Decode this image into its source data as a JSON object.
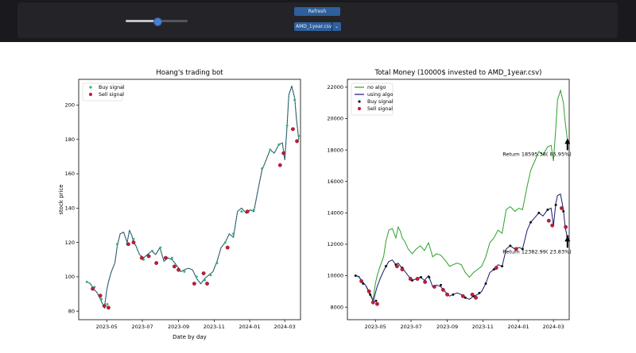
{
  "toolbar": {
    "slider_value": 0.5,
    "refresh_label": "Refresh",
    "file_select_value": "AMD_1year.csv",
    "dropdown_icon": "chevron-down-icon"
  },
  "chart_data": [
    {
      "type": "line",
      "title": "Hoang's trading bot",
      "xlabel": "Date by day",
      "ylabel": "stock price",
      "xlim": [
        "2023-03-14",
        "2024-03-28"
      ],
      "ylim": [
        75,
        215
      ],
      "x_ticks": [
        "2023-05",
        "2023-07",
        "2023-09",
        "2023-11",
        "2024-01",
        "2024-03"
      ],
      "y_ticks": [
        80,
        100,
        120,
        140,
        160,
        180,
        200
      ],
      "legend": {
        "position": "upper left",
        "entries": [
          "Buy signal",
          "Sell signal"
        ]
      },
      "colors": {
        "price": "#4a8aa0",
        "buy": "#3cb371",
        "sell": "#c21e3a"
      },
      "grid": false,
      "series": [
        {
          "dates": [
            "2023-03-28",
            "2023-04-03",
            "2023-04-08",
            "2023-04-14",
            "2023-04-20",
            "2023-04-24",
            "2023-04-27",
            "2023-05-01",
            "2023-05-04",
            "2023-05-09",
            "2023-05-15",
            "2023-05-19",
            "2023-05-24",
            "2023-05-30",
            "2023-06-05",
            "2023-06-09",
            "2023-06-13",
            "2023-06-16",
            "2023-06-20",
            "2023-06-26",
            "2023-07-03",
            "2023-07-10",
            "2023-07-17",
            "2023-07-24",
            "2023-07-31",
            "2023-08-07",
            "2023-08-14",
            "2023-08-21",
            "2023-08-28",
            "2023-09-05",
            "2023-09-11",
            "2023-09-18",
            "2023-09-25",
            "2023-10-02",
            "2023-10-09",
            "2023-10-16",
            "2023-10-23",
            "2023-10-30",
            "2023-11-06",
            "2023-11-13",
            "2023-11-20",
            "2023-11-27",
            "2023-12-04",
            "2023-12-11",
            "2023-12-18",
            "2023-12-26",
            "2024-01-02",
            "2024-01-08",
            "2024-01-16",
            "2024-01-22",
            "2024-01-29",
            "2024-02-05",
            "2024-02-12",
            "2024-02-20",
            "2024-02-26",
            "2024-03-01",
            "2024-03-05",
            "2024-03-08",
            "2024-03-13",
            "2024-03-18",
            "2024-03-21",
            "2024-03-25"
          ],
          "price": [
            97,
            96,
            93,
            91,
            87,
            84,
            82,
            92,
            97,
            103,
            108,
            118,
            125,
            126,
            120,
            127,
            124,
            120,
            118,
            113,
            111,
            113,
            115,
            113,
            117,
            109,
            111,
            110,
            107,
            103,
            104,
            105,
            104,
            99,
            96,
            99,
            101,
            103,
            109,
            117,
            120,
            125,
            123,
            138,
            140,
            137,
            139,
            138,
            152,
            162,
            168,
            174,
            172,
            177,
            178,
            168,
            188,
            206,
            211,
            204,
            192,
            180
          ]
        }
      ],
      "buy_points": [
        [
          "2023-03-28",
          97
        ],
        [
          "2023-04-10",
          94
        ],
        [
          "2023-04-22",
          87
        ],
        [
          "2023-05-02",
          84
        ],
        [
          "2023-05-19",
          119
        ],
        [
          "2023-06-05",
          119
        ],
        [
          "2023-06-16",
          122
        ],
        [
          "2023-07-03",
          110
        ],
        [
          "2023-07-18",
          115
        ],
        [
          "2023-08-01",
          117
        ],
        [
          "2023-08-21",
          111
        ],
        [
          "2023-09-11",
          103
        ],
        [
          "2023-10-02",
          100
        ],
        [
          "2023-10-16",
          98
        ],
        [
          "2023-10-26",
          101
        ],
        [
          "2023-11-06",
          108
        ],
        [
          "2023-11-20",
          120
        ],
        [
          "2023-12-04",
          125
        ],
        [
          "2023-12-18",
          138
        ],
        [
          "2024-01-08",
          139
        ],
        [
          "2024-01-22",
          163
        ],
        [
          "2024-02-05",
          174
        ],
        [
          "2024-02-20",
          177
        ],
        [
          "2024-03-05",
          188
        ],
        [
          "2024-03-18",
          203
        ],
        [
          "2024-03-25",
          182
        ]
      ],
      "sell_points": [
        [
          "2023-04-07",
          93
        ],
        [
          "2023-04-20",
          89
        ],
        [
          "2023-04-27",
          83
        ],
        [
          "2023-05-04",
          82
        ],
        [
          "2023-06-07",
          119
        ],
        [
          "2023-06-16",
          120
        ],
        [
          "2023-06-30",
          111
        ],
        [
          "2023-07-12",
          112
        ],
        [
          "2023-07-25",
          108
        ],
        [
          "2023-08-10",
          111
        ],
        [
          "2023-08-25",
          106
        ],
        [
          "2023-09-01",
          104
        ],
        [
          "2023-09-28",
          96
        ],
        [
          "2023-10-14",
          102
        ],
        [
          "2023-10-20",
          96
        ],
        [
          "2023-11-24",
          117
        ],
        [
          "2023-12-28",
          138
        ],
        [
          "2024-02-22",
          165
        ],
        [
          "2024-02-28",
          172
        ],
        [
          "2024-03-15",
          186
        ],
        [
          "2024-03-22",
          179
        ]
      ]
    },
    {
      "type": "line",
      "title": "Total Money (10000$ invested to AMD_1year.csv)",
      "xlim": [
        "2023-03-14",
        "2024-03-28"
      ],
      "ylim": [
        7200,
        22500
      ],
      "x_ticks": [
        "2023-05",
        "2023-07",
        "2023-09",
        "2023-11",
        "2024-01",
        "2024-03"
      ],
      "y_ticks": [
        8000,
        10000,
        12000,
        14000,
        16000,
        18000,
        20000,
        22000
      ],
      "legend": {
        "position": "upper left",
        "entries": [
          "no algo",
          "using algo",
          "Buy signal",
          "Sell signal"
        ]
      },
      "colors": {
        "no_algo": "#2ca02c",
        "using_algo": "#1a1a6e",
        "buy": "#111111",
        "sell": "#c21e3a"
      },
      "grid": false,
      "series": [
        {
          "name": "no algo",
          "dates": [
            "2023-03-28",
            "2023-04-03",
            "2023-04-08",
            "2023-04-14",
            "2023-04-20",
            "2023-04-24",
            "2023-04-27",
            "2023-05-01",
            "2023-05-04",
            "2023-05-09",
            "2023-05-15",
            "2023-05-19",
            "2023-05-24",
            "2023-05-30",
            "2023-06-05",
            "2023-06-09",
            "2023-06-13",
            "2023-06-16",
            "2023-06-20",
            "2023-06-26",
            "2023-07-03",
            "2023-07-10",
            "2023-07-17",
            "2023-07-24",
            "2023-07-31",
            "2023-08-07",
            "2023-08-14",
            "2023-08-21",
            "2023-08-28",
            "2023-09-05",
            "2023-09-11",
            "2023-09-18",
            "2023-09-25",
            "2023-10-02",
            "2023-10-09",
            "2023-10-16",
            "2023-10-23",
            "2023-10-30",
            "2023-11-06",
            "2023-11-13",
            "2023-11-20",
            "2023-11-27",
            "2023-12-04",
            "2023-12-11",
            "2023-12-18",
            "2023-12-26",
            "2024-01-02",
            "2024-01-08",
            "2024-01-16",
            "2024-01-22",
            "2024-01-29",
            "2024-02-05",
            "2024-02-12",
            "2024-02-20",
            "2024-02-26",
            "2024-03-01",
            "2024-03-05",
            "2024-03-08",
            "2024-03-13",
            "2024-03-18",
            "2024-03-21",
            "2024-03-25"
          ],
          "values": [
            10000,
            9900,
            9600,
            9400,
            8900,
            8600,
            8500,
            9500,
            10000,
            10600,
            11200,
            12200,
            12900,
            13000,
            12400,
            13100,
            12800,
            12400,
            12200,
            11700,
            11400,
            11700,
            11900,
            11600,
            12100,
            11200,
            11400,
            11300,
            11000,
            10600,
            10700,
            10800,
            10700,
            10200,
            9900,
            10200,
            10400,
            10600,
            11200,
            12100,
            12400,
            12900,
            12700,
            14200,
            14400,
            14100,
            14300,
            14200,
            15700,
            16700,
            17300,
            17900,
            17700,
            18200,
            18300,
            17300,
            19400,
            21200,
            21800,
            21000,
            19800,
            18595
          ]
        },
        {
          "name": "using algo",
          "dates": [
            "2023-03-28",
            "2023-04-03",
            "2023-04-08",
            "2023-04-14",
            "2023-04-20",
            "2023-04-24",
            "2023-04-27",
            "2023-05-01",
            "2023-05-04",
            "2023-05-09",
            "2023-05-15",
            "2023-05-19",
            "2023-05-24",
            "2023-05-30",
            "2023-06-05",
            "2023-06-09",
            "2023-06-13",
            "2023-06-16",
            "2023-06-20",
            "2023-06-26",
            "2023-07-03",
            "2023-07-10",
            "2023-07-17",
            "2023-07-24",
            "2023-07-31",
            "2023-08-07",
            "2023-08-14",
            "2023-08-21",
            "2023-08-28",
            "2023-09-05",
            "2023-09-11",
            "2023-09-18",
            "2023-09-25",
            "2023-10-02",
            "2023-10-09",
            "2023-10-16",
            "2023-10-23",
            "2023-10-30",
            "2023-11-06",
            "2023-11-13",
            "2023-11-20",
            "2023-11-27",
            "2023-12-04",
            "2023-12-11",
            "2023-12-18",
            "2023-12-26",
            "2024-01-02",
            "2024-01-08",
            "2024-01-16",
            "2024-01-22",
            "2024-01-29",
            "2024-02-05",
            "2024-02-12",
            "2024-02-20",
            "2024-02-26",
            "2024-03-01",
            "2024-03-05",
            "2024-03-08",
            "2024-03-13",
            "2024-03-18",
            "2024-03-21",
            "2024-03-25"
          ],
          "values": [
            10000,
            9950,
            9600,
            9400,
            9000,
            8700,
            8300,
            8900,
            9300,
            9800,
            10300,
            10600,
            10900,
            11000,
            10700,
            10800,
            10600,
            10400,
            10300,
            10000,
            9700,
            9800,
            9900,
            9700,
            10000,
            9300,
            9400,
            9300,
            9000,
            8700,
            8800,
            8900,
            8800,
            8600,
            8500,
            8700,
            8800,
            9000,
            9500,
            10200,
            10400,
            10700,
            10600,
            11700,
            11900,
            11700,
            11800,
            11700,
            12900,
            13400,
            13700,
            14000,
            13800,
            14200,
            14300,
            13200,
            14600,
            15100,
            15200,
            14200,
            13100,
            12383
          ]
        }
      ],
      "buy_points": [
        [
          "2023-03-28",
          10000
        ],
        [
          "2023-04-10",
          9500
        ],
        [
          "2023-04-22",
          8800
        ],
        [
          "2023-05-02",
          8400
        ],
        [
          "2023-05-19",
          10600
        ],
        [
          "2023-06-05",
          10700
        ],
        [
          "2023-06-16",
          10500
        ],
        [
          "2023-07-03",
          9700
        ],
        [
          "2023-07-18",
          9900
        ],
        [
          "2023-08-01",
          9900
        ],
        [
          "2023-08-21",
          9400
        ],
        [
          "2023-09-11",
          8800
        ],
        [
          "2023-10-02",
          8600
        ],
        [
          "2023-10-16",
          8700
        ],
        [
          "2023-10-26",
          8900
        ],
        [
          "2023-11-06",
          9500
        ],
        [
          "2023-11-20",
          10400
        ],
        [
          "2023-12-04",
          10600
        ],
        [
          "2023-12-18",
          11900
        ],
        [
          "2024-01-08",
          11700
        ],
        [
          "2024-01-22",
          13400
        ],
        [
          "2024-02-05",
          14000
        ],
        [
          "2024-02-20",
          14200
        ],
        [
          "2024-03-05",
          14500
        ],
        [
          "2024-03-18",
          14100
        ],
        [
          "2024-03-25",
          12500
        ]
      ],
      "sell_points": [
        [
          "2023-04-07",
          9650
        ],
        [
          "2023-04-20",
          9000
        ],
        [
          "2023-04-27",
          8300
        ],
        [
          "2023-05-04",
          8200
        ],
        [
          "2023-06-07",
          10600
        ],
        [
          "2023-06-16",
          10400
        ],
        [
          "2023-06-30",
          9800
        ],
        [
          "2023-07-12",
          9800
        ],
        [
          "2023-07-25",
          9600
        ],
        [
          "2023-08-10",
          9300
        ],
        [
          "2023-08-25",
          9100
        ],
        [
          "2023-09-01",
          8800
        ],
        [
          "2023-09-28",
          8700
        ],
        [
          "2023-10-14",
          8800
        ],
        [
          "2023-10-20",
          8600
        ],
        [
          "2023-11-24",
          10500
        ],
        [
          "2023-12-28",
          11700
        ],
        [
          "2024-02-22",
          13500
        ],
        [
          "2024-02-28",
          13200
        ],
        [
          "2024-03-15",
          14300
        ],
        [
          "2024-03-22",
          13100
        ]
      ],
      "annotations": [
        {
          "text": "Return 18595.38( 85.95%)",
          "x": "2024-03-25",
          "y": 18595
        },
        {
          "text": "Return 12382.99( 23.83%)",
          "x": "2024-03-25",
          "y": 12383
        }
      ]
    }
  ]
}
